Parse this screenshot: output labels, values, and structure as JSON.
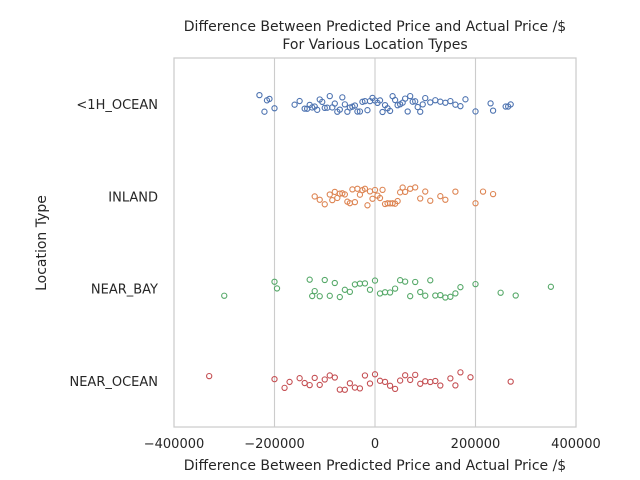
{
  "chart_data": {
    "type": "scatter",
    "subtype": "strip",
    "title": "Difference Between Predicted Price and Actual Price /$\nFor Various Location Types",
    "xlabel": "Difference Between Predicted Price and Actual Price /$",
    "ylabel": "Location Type",
    "xlim": [
      -400000,
      400000
    ],
    "xticks": [
      -400000,
      -200000,
      0,
      200000,
      400000
    ],
    "xtick_labels": [
      "−400000",
      "−200000",
      "0",
      "200000",
      "400000"
    ],
    "categories": [
      "<1H_OCEAN",
      "INLAND",
      "NEAR_BAY",
      "NEAR_OCEAN"
    ],
    "grid": "vertical",
    "colors": [
      "#4c72b0",
      "#dd8452",
      "#55a868",
      "#c44e52"
    ],
    "series": [
      {
        "category": "<1H_OCEAN",
        "values": [
          -230000,
          -220000,
          -215000,
          -210000,
          -200000,
          -160000,
          -150000,
          -140000,
          -135000,
          -130000,
          -125000,
          -120000,
          -115000,
          -110000,
          -105000,
          -100000,
          -95000,
          -90000,
          -85000,
          -80000,
          -75000,
          -70000,
          -65000,
          -60000,
          -55000,
          -50000,
          -45000,
          -40000,
          -35000,
          -30000,
          -25000,
          -20000,
          -15000,
          -10000,
          -5000,
          0,
          5000,
          10000,
          15000,
          20000,
          25000,
          30000,
          35000,
          40000,
          45000,
          50000,
          55000,
          60000,
          65000,
          70000,
          75000,
          80000,
          85000,
          90000,
          95000,
          100000,
          110000,
          120000,
          130000,
          140000,
          150000,
          160000,
          170000,
          180000,
          200000,
          230000,
          235000,
          260000,
          265000,
          270000
        ]
      },
      {
        "category": "INLAND",
        "values": [
          -120000,
          -110000,
          -100000,
          -90000,
          -85000,
          -80000,
          -75000,
          -70000,
          -65000,
          -60000,
          -55000,
          -50000,
          -45000,
          -40000,
          -35000,
          -30000,
          -25000,
          -20000,
          -15000,
          -10000,
          -5000,
          0,
          5000,
          10000,
          15000,
          20000,
          25000,
          30000,
          35000,
          40000,
          45000,
          50000,
          55000,
          60000,
          70000,
          80000,
          90000,
          100000,
          110000,
          130000,
          140000,
          160000,
          200000,
          215000,
          235000
        ]
      },
      {
        "category": "NEAR_BAY",
        "values": [
          -300000,
          -200000,
          -195000,
          -130000,
          -125000,
          -120000,
          -110000,
          -100000,
          -90000,
          -80000,
          -70000,
          -60000,
          -50000,
          -40000,
          -30000,
          -20000,
          -10000,
          0,
          10000,
          20000,
          30000,
          40000,
          50000,
          60000,
          70000,
          80000,
          90000,
          100000,
          110000,
          120000,
          130000,
          140000,
          150000,
          160000,
          170000,
          200000,
          250000,
          280000,
          350000
        ]
      },
      {
        "category": "NEAR_OCEAN",
        "values": [
          -330000,
          -200000,
          -180000,
          -170000,
          -150000,
          -140000,
          -130000,
          -120000,
          -110000,
          -100000,
          -90000,
          -80000,
          -70000,
          -60000,
          -50000,
          -40000,
          -30000,
          -20000,
          -10000,
          0,
          10000,
          20000,
          30000,
          40000,
          50000,
          60000,
          70000,
          80000,
          90000,
          100000,
          110000,
          120000,
          130000,
          150000,
          160000,
          170000,
          190000,
          270000
        ]
      }
    ]
  }
}
